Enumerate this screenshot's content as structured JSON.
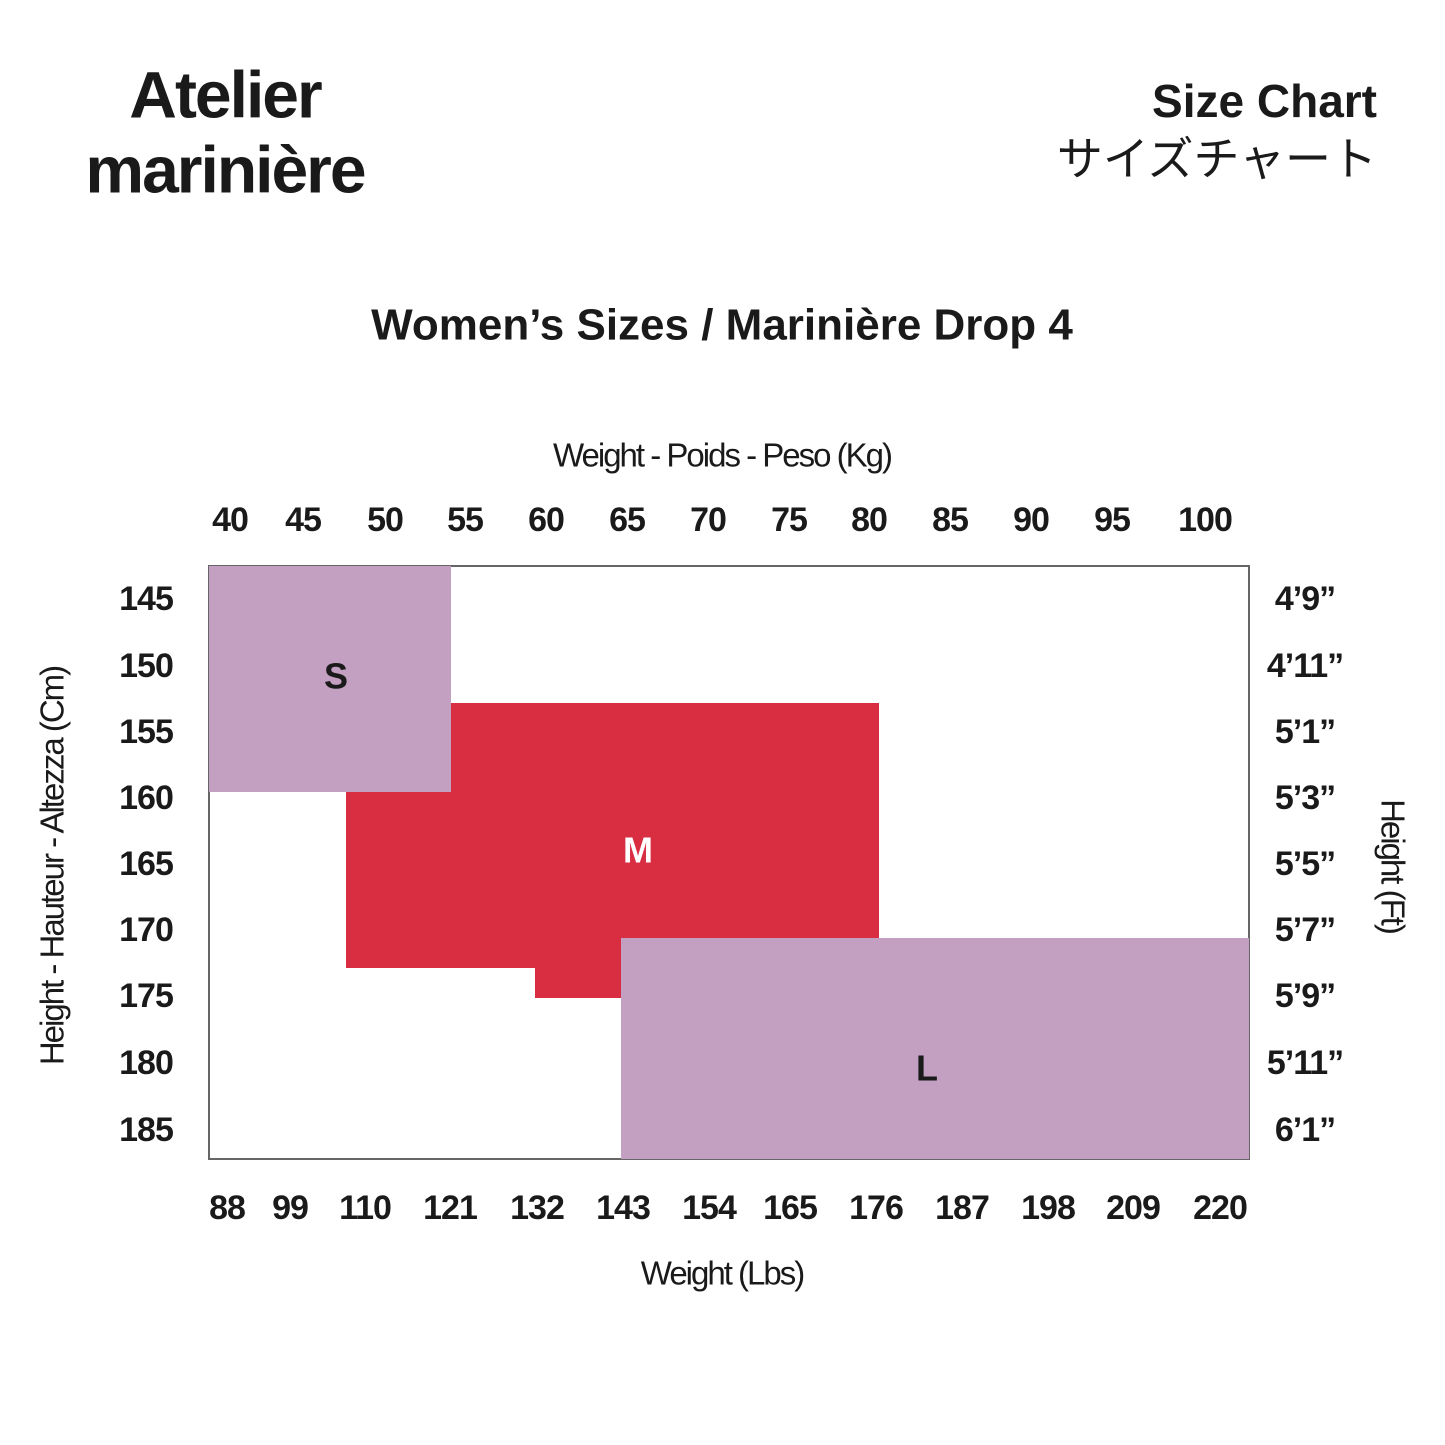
{
  "header": {
    "brand_line1": "Atelier",
    "brand_line2": "marinière",
    "title": "Size Chart",
    "title_ja": "サイズチャート"
  },
  "chart": {
    "title": "Women’s Sizes / Marinière Drop 4",
    "top_axis": {
      "label": "Weight - Poids - Peso (Kg)",
      "ticks": [
        "40",
        "45",
        "50",
        "55",
        "60",
        "65",
        "70",
        "75",
        "80",
        "85",
        "90",
        "95",
        "100"
      ]
    },
    "bottom_axis": {
      "label": "Weight (Lbs)",
      "ticks": [
        "88",
        "99",
        "110",
        "121",
        "132",
        "143",
        "154",
        "165",
        "176",
        "187",
        "198",
        "209",
        "220"
      ]
    },
    "left_axis": {
      "label": "Height - Hauteur - Altezza (Cm)",
      "ticks": [
        "145",
        "150",
        "155",
        "160",
        "165",
        "170",
        "175",
        "180",
        "185"
      ]
    },
    "right_axis": {
      "label": "Height (Ft)",
      "ticks": [
        "4’9”",
        "4’11”",
        "5’1”",
        "5’3”",
        "5’5”",
        "5’7”",
        "5’9”",
        "5’11”",
        "6’1”"
      ]
    },
    "regions": [
      {
        "label": "S"
      },
      {
        "label": "M"
      },
      {
        "label": "L"
      }
    ]
  }
}
